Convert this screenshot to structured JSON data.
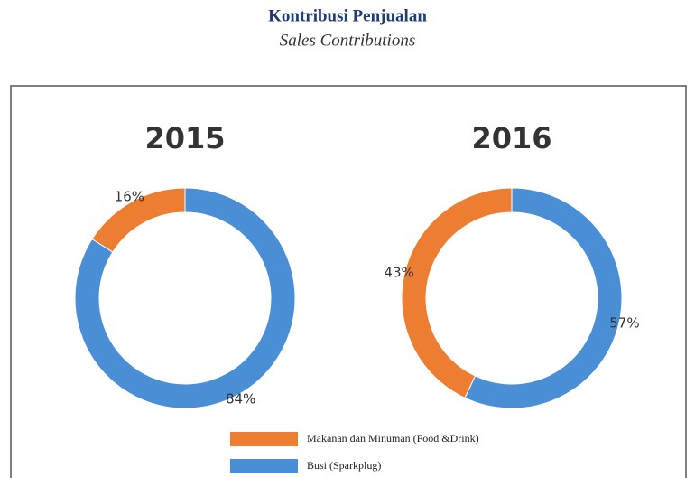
{
  "title": "Kontribusi Penjualan",
  "subtitle": "Sales Contributions",
  "legend": [
    {
      "name": "Makanan dan Minuman (Food &Drink)",
      "color": "#ed7d31"
    },
    {
      "name": "Busi (Sparkplug)",
      "color": "#4a8fd6"
    }
  ],
  "chart_data": [
    {
      "type": "donut",
      "title": "2015",
      "values": [
        16,
        84
      ],
      "value_labels": [
        "16%",
        "84%"
      ]
    },
    {
      "type": "donut",
      "title": "2016",
      "values": [
        43,
        57
      ],
      "value_labels": [
        "43%",
        "57%"
      ]
    }
  ]
}
